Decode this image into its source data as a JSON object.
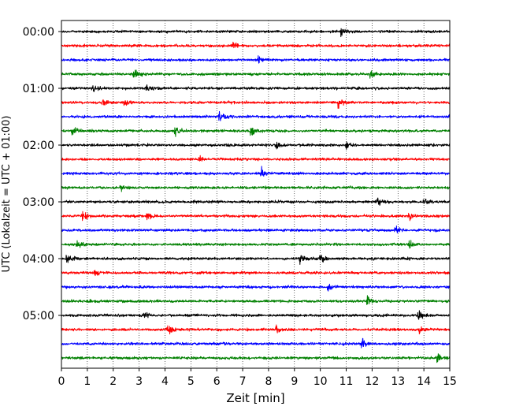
{
  "chart_data": {
    "type": "line",
    "title": "",
    "xlabel": "Zeit  [min]",
    "ylabel": "UTC (Lokalzeit = UTC + 01:00)",
    "xlim": [
      0,
      15
    ],
    "x_ticks": [
      0,
      1,
      2,
      3,
      4,
      5,
      6,
      7,
      8,
      9,
      10,
      11,
      12,
      13,
      14,
      15
    ],
    "x_grid": "vertical dotted lines at every minute",
    "y_tick_labels": [
      "00:00",
      "01:00",
      "02:00",
      "03:00",
      "04:00",
      "05:00"
    ],
    "trace_interval_minutes": 15,
    "trace_colors": [
      "#000000",
      "#ff0000",
      "#0000ff",
      "#008000"
    ],
    "traces": [
      {
        "start": "00:00",
        "color": "#000000",
        "events_min": [
          10.8
        ]
      },
      {
        "start": "00:15",
        "color": "#ff0000",
        "events_min": [
          6.6
        ]
      },
      {
        "start": "00:30",
        "color": "#0000ff",
        "events_min": [
          7.6
        ]
      },
      {
        "start": "00:45",
        "color": "#008000",
        "events_min": [
          2.8,
          11.9
        ]
      },
      {
        "start": "01:00",
        "color": "#000000",
        "events_min": [
          1.2,
          3.3
        ]
      },
      {
        "start": "01:15",
        "color": "#ff0000",
        "events_min": [
          1.6,
          2.4,
          10.7
        ]
      },
      {
        "start": "01:30",
        "color": "#0000ff",
        "events_min": [
          6.1,
          15.0
        ]
      },
      {
        "start": "01:45",
        "color": "#008000",
        "events_min": [
          0.4,
          4.4,
          7.3
        ]
      },
      {
        "start": "02:00",
        "color": "#000000",
        "events_min": [
          8.3,
          11.0
        ]
      },
      {
        "start": "02:15",
        "color": "#ff0000",
        "events_min": [
          5.3
        ]
      },
      {
        "start": "02:30",
        "color": "#0000ff",
        "events_min": [
          7.7
        ]
      },
      {
        "start": "02:45",
        "color": "#008000",
        "events_min": [
          2.3
        ]
      },
      {
        "start": "03:00",
        "color": "#000000",
        "events_min": [
          12.2,
          14.0
        ]
      },
      {
        "start": "03:15",
        "color": "#ff0000",
        "events_min": [
          0.8,
          3.3,
          13.4
        ]
      },
      {
        "start": "03:30",
        "color": "#0000ff",
        "events_min": [
          12.9
        ]
      },
      {
        "start": "03:45",
        "color": "#008000",
        "events_min": [
          0.6,
          13.4
        ]
      },
      {
        "start": "04:00",
        "color": "#000000",
        "events_min": [
          0.2,
          9.2,
          10.0
        ]
      },
      {
        "start": "04:15",
        "color": "#ff0000",
        "events_min": [
          1.3
        ]
      },
      {
        "start": "04:30",
        "color": "#0000ff",
        "events_min": [
          10.3
        ]
      },
      {
        "start": "04:45",
        "color": "#008000",
        "events_min": [
          11.8
        ]
      },
      {
        "start": "05:00",
        "color": "#000000",
        "events_min": [
          3.2,
          13.8
        ]
      },
      {
        "start": "05:15",
        "color": "#ff0000",
        "events_min": [
          4.1,
          8.3,
          13.8
        ]
      },
      {
        "start": "05:30",
        "color": "#0000ff",
        "events_min": [
          11.6
        ]
      },
      {
        "start": "05:45",
        "color": "#008000",
        "events_min": [
          14.5
        ]
      }
    ]
  }
}
